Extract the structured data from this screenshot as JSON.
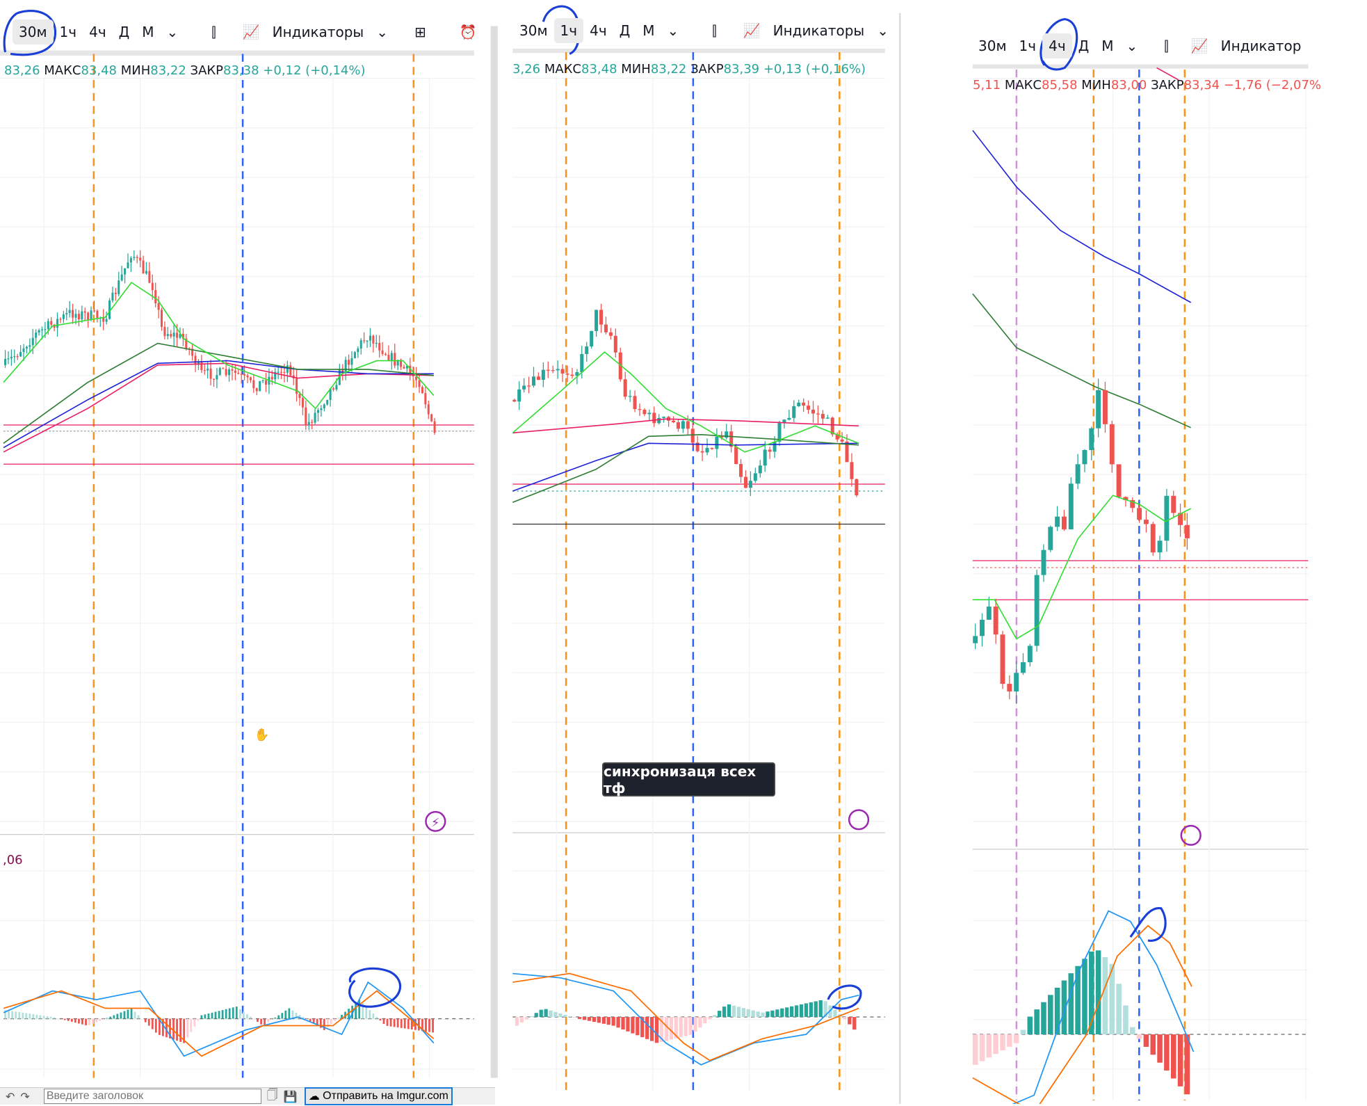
{
  "panels": [
    {
      "timeframes": [
        "30м",
        "1ч",
        "4ч",
        "Д",
        "М"
      ],
      "active": "30м",
      "indicators_label": "Индикаторы",
      "ohlc": {
        "open": "83,26",
        "high_label": "МАКС",
        "high": "83,48",
        "low_label": "МИН",
        "low": "83,22",
        "close_label": "ЗАКР",
        "close": "83,38",
        "change": "+0,12 (+0,14%)"
      },
      "macd_value": ",06"
    },
    {
      "timeframes": [
        "30м",
        "1ч",
        "4ч",
        "Д",
        "М"
      ],
      "active": "1ч",
      "indicators_label": "Индикаторы",
      "ohlc": {
        "open": "3,26",
        "high_label": "МАКС",
        "high": "83,48",
        "low_label": "МИН",
        "low": "83,22",
        "close_label": "ЗАКР",
        "close": "83,39",
        "change": "+0,13 (+0,16%)"
      }
    },
    {
      "timeframes": [
        "30м",
        "1ч",
        "4ч",
        "Д",
        "М"
      ],
      "active": "4ч",
      "indicators_label": "Индикатор",
      "ohlc": {
        "open": "5,11",
        "high_label": "МАКС",
        "high": "85,58",
        "low_label": "МИН",
        "low": "83,00",
        "close_label": "ЗАКР",
        "close": "83,34",
        "change": "−1,76 (−2,07%"
      }
    }
  ],
  "tooltip": "синхронизаця всех тф",
  "bottom_bar": {
    "title_placeholder": "Введите заголовок",
    "upload_label": "Отправить на Imgur.com"
  },
  "colors": {
    "up": "#26a69a",
    "down": "#ef5350",
    "sync_orange": "#f7931a",
    "sync_blue": "#2962ff",
    "annotation": "#1a3fd6"
  }
}
